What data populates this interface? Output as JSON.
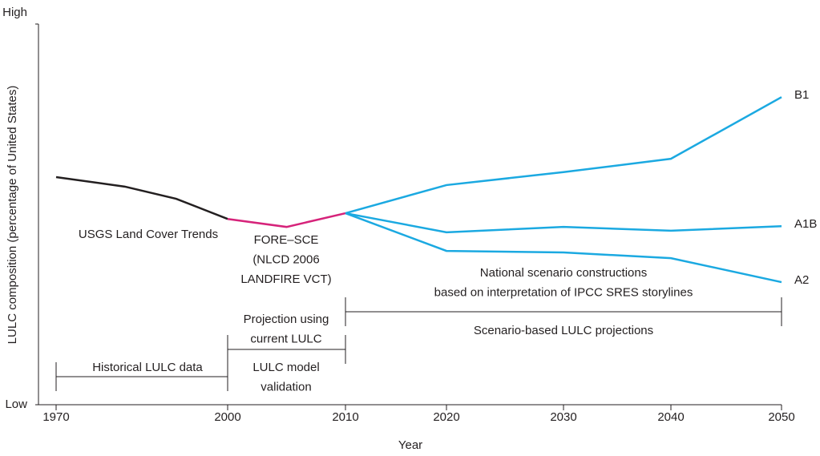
{
  "chart_data": {
    "type": "line",
    "xlabel": "Year",
    "ylabel": "LULC composition (percentage of United States)",
    "xlim": [
      1970,
      2050
    ],
    "xticks": [
      1970,
      2000,
      2010,
      2020,
      2030,
      2040,
      2050
    ],
    "ylim": [
      0,
      100
    ],
    "yticks": [
      {
        "value": 0,
        "label": "Low"
      },
      {
        "value": 100,
        "label": "High"
      }
    ],
    "series": [
      {
        "color": "#231f20",
        "x": [
          1970,
          1982,
          1991,
          2000
        ],
        "values": [
          59.8,
          57.3,
          54.1,
          48.8
        ]
      },
      {
        "color": "#d6237a",
        "x": [
          2000,
          2005,
          2010
        ],
        "values": [
          48.8,
          46.7,
          50.3
        ]
      },
      {
        "name": "B1",
        "color": "#1ba9e1",
        "x": [
          2010,
          2020,
          2030,
          2040,
          2050
        ],
        "values": [
          50.3,
          57.7,
          61.1,
          64.6,
          80.8
        ]
      },
      {
        "name": "A1B",
        "color": "#1ba9e1",
        "x": [
          2010,
          2020,
          2030,
          2040,
          2050
        ],
        "values": [
          50.3,
          45.3,
          46.7,
          45.7,
          46.9
        ]
      },
      {
        "name": "A2",
        "color": "#1ba9e1",
        "x": [
          2010,
          2020,
          2030,
          2040,
          2050
        ],
        "values": [
          50.3,
          40.4,
          40.0,
          38.5,
          32.2
        ]
      }
    ],
    "annotations": [
      {
        "lines": [
          "USGS Land Cover Trends"
        ]
      },
      {
        "lines": [
          "FORE–SCE",
          "(NLCD 2006",
          "LANDFIRE VCT)"
        ]
      },
      {
        "lines": [
          "National scenario constructions",
          "based on interpretation of IPCC SRES storylines"
        ]
      },
      {
        "lines": [
          "Projection using",
          "current LULC"
        ]
      },
      {
        "lines": [
          "Scenario-based LULC projections"
        ]
      },
      {
        "lines": [
          "LULC model",
          "validation"
        ]
      },
      {
        "lines": [
          "Historical LULC data"
        ]
      }
    ],
    "periods": [
      {
        "x": [
          1970,
          2000
        ]
      },
      {
        "x": [
          2000,
          2010
        ]
      },
      {
        "x": [
          2010,
          2050
        ]
      }
    ]
  }
}
